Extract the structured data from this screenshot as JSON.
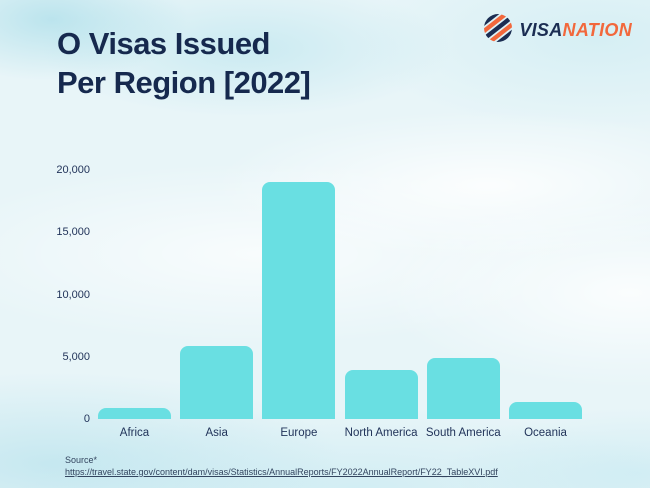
{
  "header": {
    "title_line1": "O Visas Issued",
    "title_line2": "Per Region [2022]",
    "logo": {
      "icon": "globe-stripes-icon",
      "brand_primary": "VISA",
      "brand_secondary": "NATION"
    }
  },
  "chart_data": {
    "type": "bar",
    "title": "O Visas Issued Per Region [2022]",
    "categories": [
      "Africa",
      "Asia",
      "Europe",
      "North America",
      "South America",
      "Oceania"
    ],
    "values": [
      900,
      5900,
      19000,
      3900,
      4900,
      1400
    ],
    "xlabel": "",
    "ylabel": "",
    "ylim": [
      0,
      20000
    ],
    "yticks": [
      0,
      5000,
      10000,
      15000,
      20000
    ],
    "ytick_labels": [
      "0",
      "5,000",
      "10,000",
      "15,000",
      "20,000"
    ],
    "grid": false,
    "legend": false,
    "bar_color": "#69DFE2"
  },
  "footer": {
    "source_label": "Source*",
    "source_url": "https://travel.state.gov/content/dam/visas/Statistics/AnnualReports/FY2022AnnualReport/FY22_TableXVI.pdf"
  },
  "colors": {
    "title": "#16294E",
    "axis_text": "#22345A",
    "bar": "#69DFE2",
    "brand_navy": "#1B2D52",
    "brand_orange": "#F2683C",
    "background": "#E8F5F8"
  }
}
